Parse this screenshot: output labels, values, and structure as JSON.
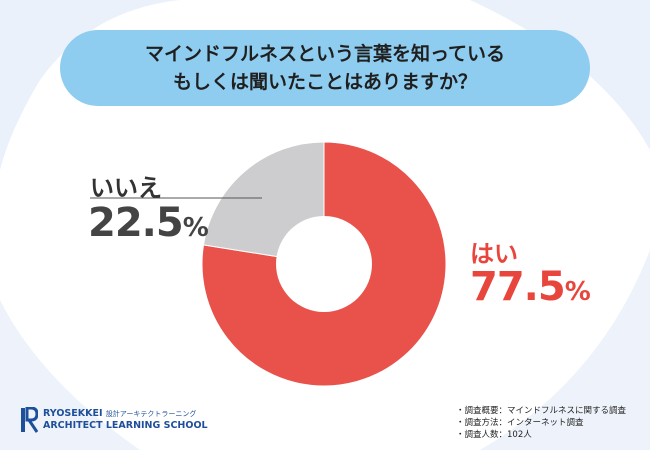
{
  "title": {
    "line1": "マインドフルネスという言葉を知っている",
    "line2": "もしくは聞いたことはありますか？"
  },
  "chart_data": {
    "type": "pie",
    "variant": "donut",
    "slices": [
      {
        "label": "はい",
        "value": 77.5,
        "value_text": "77.5",
        "color": "#e8524a"
      },
      {
        "label": "いいえ",
        "value": 22.5,
        "value_text": "22.5",
        "color": "#cdcdcf"
      }
    ],
    "unit": "%"
  },
  "branding": {
    "brand": "RYOSEKKEI",
    "sub": "設計アーキテクトラーニング",
    "school": "ARCHITECT LEARNING SCHOOL"
  },
  "notes": [
    "・調査概要：マインドフルネスに関する調査",
    "・調査方法：インターネット調査",
    "・調査人数：102人"
  ],
  "colors": {
    "title_bg": "#8fcdf0",
    "accent": "#e8453c",
    "brand": "#1e4f9a"
  }
}
